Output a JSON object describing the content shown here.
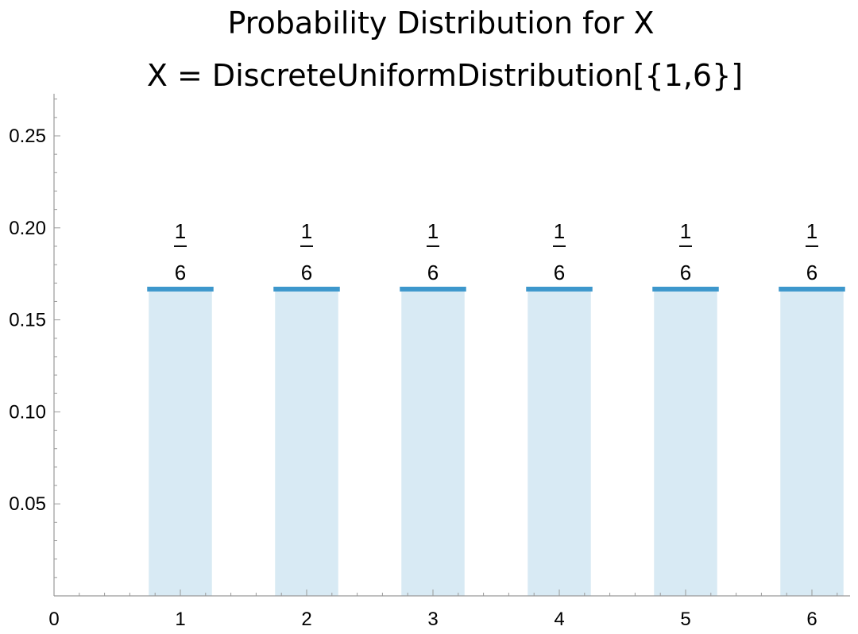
{
  "chart_data": {
    "type": "bar",
    "title": "Probability Distribution for X",
    "subtitle": "X = DiscreteUniformDistribution[{1,6}]",
    "xlabel": "",
    "ylabel": "",
    "categories": [
      1,
      2,
      3,
      4,
      5,
      6
    ],
    "values": [
      0.1667,
      0.1667,
      0.1667,
      0.1667,
      0.1667,
      0.1667
    ],
    "data_labels": [
      {
        "numerator": "1",
        "denominator": "6"
      },
      {
        "numerator": "1",
        "denominator": "6"
      },
      {
        "numerator": "1",
        "denominator": "6"
      },
      {
        "numerator": "1",
        "denominator": "6"
      },
      {
        "numerator": "1",
        "denominator": "6"
      },
      {
        "numerator": "1",
        "denominator": "6"
      }
    ],
    "xlim": [
      0,
      6.3
    ],
    "ylim": [
      0,
      0.275
    ],
    "x_ticks": [
      "0",
      "1",
      "2",
      "3",
      "4",
      "5",
      "6"
    ],
    "y_ticks": [
      "0.05",
      "0.10",
      "0.15",
      "0.20",
      "0.25"
    ],
    "y_tick_values": [
      0.05,
      0.1,
      0.15,
      0.2,
      0.25
    ],
    "grid": false,
    "colors": {
      "bar_fill": "#d8eaf4",
      "bar_top": "#3d97cc",
      "axis": "#999999"
    }
  }
}
